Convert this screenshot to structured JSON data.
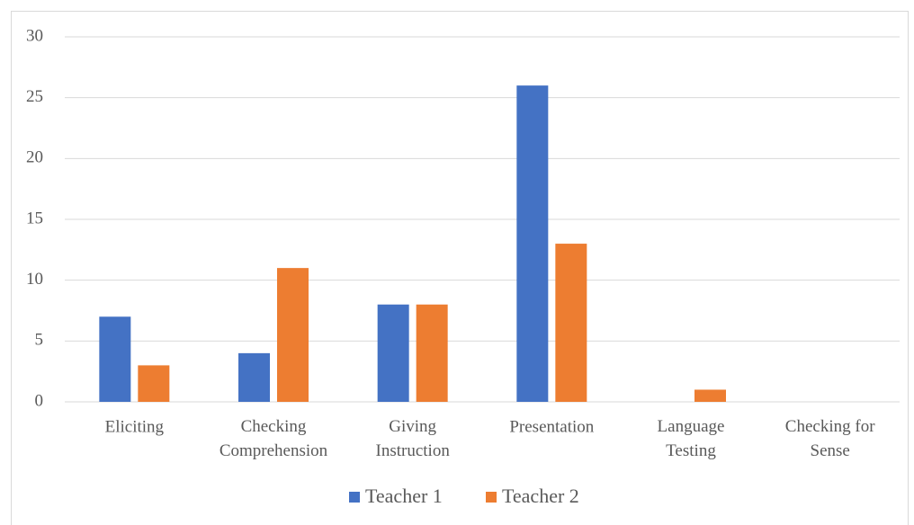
{
  "chart_data": {
    "type": "bar",
    "categories": [
      "Eliciting",
      "Checking Comprehension",
      "Giving Instruction",
      "Presentation",
      "Language Testing",
      "Checking for Sense"
    ],
    "series": [
      {
        "name": "Teacher 1",
        "color": "#4472c4",
        "values": [
          7,
          4,
          8,
          26,
          0,
          0
        ]
      },
      {
        "name": "Teacher 2",
        "color": "#ed7d31",
        "values": [
          3,
          11,
          8,
          13,
          1,
          0
        ]
      }
    ],
    "ylim": [
      0,
      30
    ],
    "yticks": [
      0,
      5,
      10,
      15,
      20,
      25,
      30
    ],
    "grid": true,
    "legend": "bottom"
  }
}
